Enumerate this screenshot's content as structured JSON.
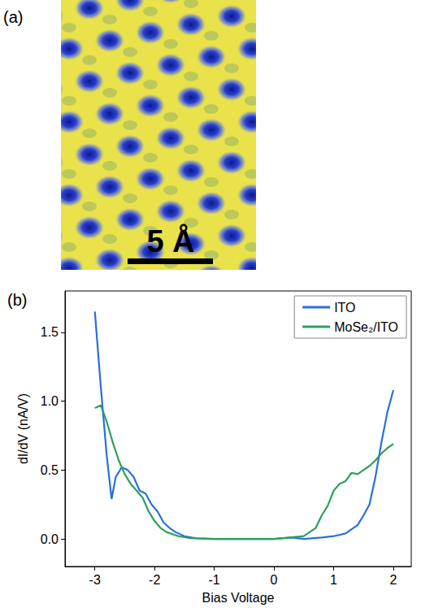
{
  "chart_data": [
    {
      "type": "image",
      "label": "(a)",
      "scale_bar": "5 Å"
    },
    {
      "type": "line",
      "label": "(b)",
      "x_label": "Bias Voltage",
      "y_label": "dI/dV (nA/V)",
      "xlim": [
        -3.5,
        2.3
      ],
      "xticks": [
        -3,
        -2,
        -1,
        0,
        1,
        2
      ],
      "ylim": [
        -0.2,
        1.8
      ],
      "yticks": [
        {
          "value": 0,
          "label": "0.0"
        },
        0.5,
        {
          "value": 1,
          "label": "1.0"
        },
        1.5
      ],
      "grid": false,
      "legend": "upper right",
      "series": [
        {
          "name": "ITO",
          "color": "#2a6fdb",
          "x": [
            -3.0,
            -2.9,
            -2.8,
            -2.72,
            -2.65,
            -2.55,
            -2.45,
            -2.35,
            -2.25,
            -2.15,
            -2.05,
            -1.95,
            -1.85,
            -1.75,
            -1.65,
            -1.5,
            -1.3,
            -1.0,
            -0.5,
            0.0,
            0.3,
            0.5,
            0.8,
            1.0,
            1.2,
            1.4,
            1.5,
            1.6,
            1.7,
            1.8,
            1.9,
            2.0
          ],
          "values": [
            1.65,
            1.1,
            0.6,
            0.29,
            0.45,
            0.52,
            0.5,
            0.45,
            0.35,
            0.33,
            0.25,
            0.2,
            0.12,
            0.08,
            0.05,
            0.02,
            0.005,
            0.0,
            0.0,
            0.0,
            0.01,
            0.0,
            0.01,
            0.02,
            0.04,
            0.1,
            0.17,
            0.25,
            0.45,
            0.7,
            0.92,
            1.08
          ]
        },
        {
          "name": "MoSe₂/ITO",
          "color": "#2ca05a",
          "x": [
            -3.0,
            -2.9,
            -2.8,
            -2.7,
            -2.6,
            -2.5,
            -2.4,
            -2.3,
            -2.2,
            -2.1,
            -2.0,
            -1.9,
            -1.8,
            -1.6,
            -1.4,
            -1.0,
            0.0,
            0.5,
            0.7,
            0.8,
            0.9,
            1.0,
            1.1,
            1.2,
            1.3,
            1.4,
            1.5,
            1.6,
            1.7,
            1.8,
            1.9,
            2.0
          ],
          "values": [
            0.95,
            0.97,
            0.85,
            0.7,
            0.57,
            0.47,
            0.4,
            0.35,
            0.3,
            0.2,
            0.13,
            0.08,
            0.05,
            0.02,
            0.005,
            0.0,
            0.0,
            0.02,
            0.08,
            0.17,
            0.24,
            0.35,
            0.4,
            0.42,
            0.48,
            0.47,
            0.5,
            0.53,
            0.57,
            0.62,
            0.66,
            0.69
          ]
        }
      ]
    }
  ]
}
